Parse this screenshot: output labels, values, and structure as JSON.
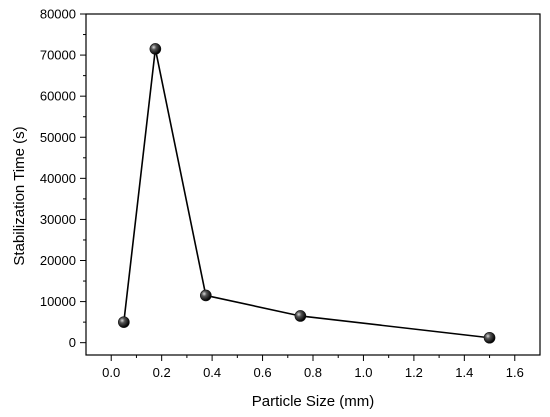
{
  "chart_data": {
    "type": "line",
    "title": "",
    "xlabel": "Particle Size (mm)",
    "ylabel": "Stabilization Time (s)",
    "xlim": [
      -0.1,
      1.7
    ],
    "ylim": [
      -3000,
      80000
    ],
    "xticks": [
      0.0,
      0.2,
      0.4,
      0.6,
      0.8,
      1.0,
      1.2,
      1.4,
      1.6
    ],
    "xtick_labels": [
      "0.0",
      "0.2",
      "0.4",
      "0.6",
      "0.8",
      "1.0",
      "1.2",
      "1.4",
      "1.6"
    ],
    "yticks": [
      0,
      10000,
      20000,
      30000,
      40000,
      50000,
      60000,
      70000,
      80000
    ],
    "ytick_labels": [
      "0",
      "10000",
      "20000",
      "30000",
      "40000",
      "50000",
      "60000",
      "70000",
      "80000"
    ],
    "grid": false,
    "legend": "none",
    "line_color": "#000000",
    "marker_color": "#111111",
    "series": [
      {
        "x": [
          0.05,
          0.175,
          0.375,
          0.75,
          1.5
        ],
        "y": [
          5000,
          71500,
          11500,
          6500,
          1200
        ]
      }
    ]
  }
}
